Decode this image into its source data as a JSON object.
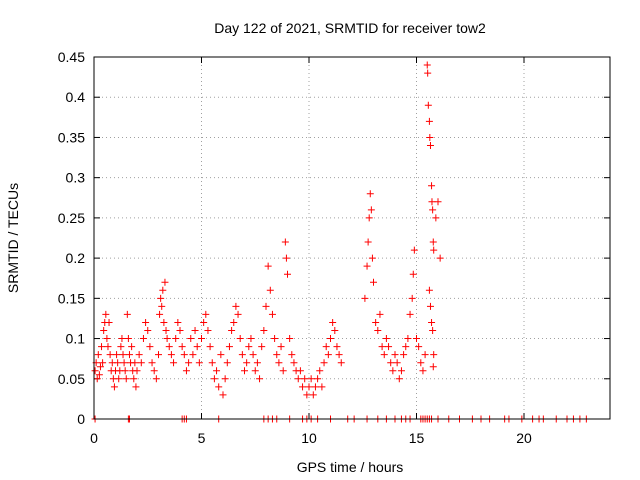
{
  "chart_data": {
    "type": "scatter",
    "title": "Day 122 of 2021, SRMTID for receiver tow2",
    "xlabel": "GPS time / hours",
    "ylabel": "SRMTID / TECUs",
    "xlim": [
      0,
      24
    ],
    "ylim": [
      0,
      0.45
    ],
    "xticks": [
      0,
      5,
      10,
      15,
      20
    ],
    "xtick_labels": [
      "0",
      "5",
      "10",
      "15",
      "20"
    ],
    "yticks": [
      0,
      0.05,
      0.1,
      0.15,
      0.2,
      0.25,
      0.3,
      0.35,
      0.4,
      0.45
    ],
    "ytick_labels": [
      "0",
      "0.05",
      "0.1",
      "0.15",
      "0.2",
      "0.25",
      "0.3",
      "0.35",
      "0.4",
      "0.45"
    ],
    "grid": true,
    "legend": "none",
    "marker": "+",
    "series": [
      {
        "name": "SRMTID",
        "color": "#ff0000",
        "points": [
          [
            0.05,
            0.06
          ],
          [
            0.1,
            0.07
          ],
          [
            0.15,
            0.05
          ],
          [
            0.2,
            0.08
          ],
          [
            0.25,
            0.055
          ],
          [
            0.3,
            0.065
          ],
          [
            0.35,
            0.09
          ],
          [
            0.4,
            0.07
          ],
          [
            0.45,
            0.11
          ],
          [
            0.5,
            0.12
          ],
          [
            0.55,
            0.13
          ],
          [
            0.6,
            0.1
          ],
          [
            0.65,
            0.09
          ],
          [
            0.7,
            0.12
          ],
          [
            0.75,
            0.08
          ],
          [
            0.8,
            0.06
          ],
          [
            0.85,
            0.07
          ],
          [
            0.9,
            0.05
          ],
          [
            0.95,
            0.04
          ],
          [
            1.0,
            0.06
          ],
          [
            1.05,
            0.08
          ],
          [
            1.1,
            0.07
          ],
          [
            1.15,
            0.05
          ],
          [
            1.2,
            0.06
          ],
          [
            1.25,
            0.09
          ],
          [
            1.3,
            0.1
          ],
          [
            1.35,
            0.08
          ],
          [
            1.4,
            0.07
          ],
          [
            1.45,
            0.06
          ],
          [
            1.5,
            0.05
          ],
          [
            1.55,
            0.13
          ],
          [
            1.6,
            0.1
          ],
          [
            1.65,
            0.08
          ],
          [
            1.7,
            0.07
          ],
          [
            1.75,
            0.09
          ],
          [
            1.8,
            0.06
          ],
          [
            1.85,
            0.05
          ],
          [
            1.9,
            0.07
          ],
          [
            1.95,
            0.04
          ],
          [
            2.0,
            0.06
          ],
          [
            2.1,
            0.08
          ],
          [
            2.2,
            0.07
          ],
          [
            2.3,
            0.1
          ],
          [
            2.4,
            0.12
          ],
          [
            2.5,
            0.11
          ],
          [
            2.6,
            0.09
          ],
          [
            2.7,
            0.07
          ],
          [
            2.8,
            0.06
          ],
          [
            2.9,
            0.05
          ],
          [
            3.0,
            0.08
          ],
          [
            3.05,
            0.13
          ],
          [
            3.1,
            0.15
          ],
          [
            3.15,
            0.14
          ],
          [
            3.2,
            0.16
          ],
          [
            3.25,
            0.12
          ],
          [
            3.3,
            0.17
          ],
          [
            3.35,
            0.11
          ],
          [
            3.4,
            0.1
          ],
          [
            3.5,
            0.09
          ],
          [
            3.6,
            0.08
          ],
          [
            3.7,
            0.07
          ],
          [
            3.8,
            0.1
          ],
          [
            3.9,
            0.12
          ],
          [
            4.0,
            0.11
          ],
          [
            4.1,
            0.09
          ],
          [
            4.2,
            0.08
          ],
          [
            4.3,
            0.06
          ],
          [
            4.4,
            0.07
          ],
          [
            4.5,
            0.1
          ],
          [
            4.6,
            0.08
          ],
          [
            4.7,
            0.11
          ],
          [
            4.8,
            0.09
          ],
          [
            4.9,
            0.07
          ],
          [
            5.0,
            0.1
          ],
          [
            5.1,
            0.12
          ],
          [
            5.2,
            0.13
          ],
          [
            5.3,
            0.11
          ],
          [
            5.4,
            0.09
          ],
          [
            5.5,
            0.07
          ],
          [
            5.6,
            0.05
          ],
          [
            5.7,
            0.06
          ],
          [
            5.8,
            0.04
          ],
          [
            5.9,
            0.08
          ],
          [
            6.0,
            0.03
          ],
          [
            6.1,
            0.05
          ],
          [
            6.2,
            0.07
          ],
          [
            6.3,
            0.09
          ],
          [
            6.4,
            0.11
          ],
          [
            6.5,
            0.12
          ],
          [
            6.6,
            0.14
          ],
          [
            6.7,
            0.13
          ],
          [
            6.8,
            0.1
          ],
          [
            6.9,
            0.08
          ],
          [
            7.0,
            0.06
          ],
          [
            7.1,
            0.07
          ],
          [
            7.2,
            0.09
          ],
          [
            7.3,
            0.1
          ],
          [
            7.4,
            0.08
          ],
          [
            7.5,
            0.06
          ],
          [
            7.6,
            0.07
          ],
          [
            7.7,
            0.05
          ],
          [
            7.8,
            0.09
          ],
          [
            7.9,
            0.11
          ],
          [
            8.0,
            0.14
          ],
          [
            8.1,
            0.19
          ],
          [
            8.2,
            0.16
          ],
          [
            8.3,
            0.13
          ],
          [
            8.4,
            0.1
          ],
          [
            8.5,
            0.08
          ],
          [
            8.6,
            0.07
          ],
          [
            8.7,
            0.09
          ],
          [
            8.8,
            0.06
          ],
          [
            8.9,
            0.22
          ],
          [
            8.95,
            0.2
          ],
          [
            9.0,
            0.18
          ],
          [
            9.1,
            0.1
          ],
          [
            9.2,
            0.08
          ],
          [
            9.3,
            0.07
          ],
          [
            9.4,
            0.06
          ],
          [
            9.5,
            0.05
          ],
          [
            9.6,
            0.06
          ],
          [
            9.7,
            0.04
          ],
          [
            9.8,
            0.05
          ],
          [
            9.9,
            0.03
          ],
          [
            10.0,
            0.04
          ],
          [
            10.1,
            0.05
          ],
          [
            10.2,
            0.03
          ],
          [
            10.3,
            0.04
          ],
          [
            10.4,
            0.05
          ],
          [
            10.5,
            0.06
          ],
          [
            10.6,
            0.04
          ],
          [
            10.7,
            0.07
          ],
          [
            10.8,
            0.09
          ],
          [
            10.9,
            0.08
          ],
          [
            11.0,
            0.1
          ],
          [
            11.1,
            0.12
          ],
          [
            11.2,
            0.11
          ],
          [
            11.3,
            0.09
          ],
          [
            11.4,
            0.08
          ],
          [
            11.5,
            0.07
          ],
          [
            12.6,
            0.15
          ],
          [
            12.7,
            0.19
          ],
          [
            12.75,
            0.22
          ],
          [
            12.8,
            0.25
          ],
          [
            12.85,
            0.28
          ],
          [
            12.9,
            0.26
          ],
          [
            12.95,
            0.2
          ],
          [
            13.0,
            0.17
          ],
          [
            13.1,
            0.12
          ],
          [
            13.2,
            0.11
          ],
          [
            13.3,
            0.13
          ],
          [
            13.4,
            0.09
          ],
          [
            13.5,
            0.08
          ],
          [
            13.6,
            0.1
          ],
          [
            13.7,
            0.09
          ],
          [
            13.8,
            0.07
          ],
          [
            13.9,
            0.06
          ],
          [
            14.0,
            0.08
          ],
          [
            14.1,
            0.07
          ],
          [
            14.2,
            0.05
          ],
          [
            14.3,
            0.06
          ],
          [
            14.4,
            0.08
          ],
          [
            14.5,
            0.09
          ],
          [
            14.6,
            0.1
          ],
          [
            14.7,
            0.13
          ],
          [
            14.8,
            0.15
          ],
          [
            14.85,
            0.18
          ],
          [
            14.9,
            0.21
          ],
          [
            15.0,
            0.1
          ],
          [
            15.1,
            0.09
          ],
          [
            15.2,
            0.07
          ],
          [
            15.3,
            0.06
          ],
          [
            15.4,
            0.08
          ],
          [
            15.5,
            0.44
          ],
          [
            15.52,
            0.43
          ],
          [
            15.55,
            0.39
          ],
          [
            15.6,
            0.37
          ],
          [
            15.62,
            0.35
          ],
          [
            15.65,
            0.34
          ],
          [
            15.7,
            0.29
          ],
          [
            15.72,
            0.27
          ],
          [
            15.75,
            0.26
          ],
          [
            15.78,
            0.22
          ],
          [
            15.8,
            0.21
          ],
          [
            15.6,
            0.16
          ],
          [
            15.65,
            0.14
          ],
          [
            15.7,
            0.12
          ],
          [
            15.75,
            0.11
          ],
          [
            15.8,
            0.08
          ],
          [
            15.78,
            0.065
          ],
          [
            15.9,
            0.25
          ],
          [
            16.0,
            0.27
          ],
          [
            16.1,
            0.2
          ]
        ]
      },
      {
        "name": "zero-level markers",
        "color": "#ff0000",
        "points": [
          [
            0.05,
            0
          ],
          [
            1.6,
            0
          ],
          [
            1.65,
            0
          ],
          [
            4.1,
            0
          ],
          [
            4.2,
            0
          ],
          [
            4.3,
            0
          ],
          [
            5.8,
            0
          ],
          [
            7.9,
            0
          ],
          [
            8.1,
            0
          ],
          [
            8.3,
            0
          ],
          [
            8.5,
            0
          ],
          [
            9.1,
            0
          ],
          [
            9.7,
            0
          ],
          [
            9.9,
            0
          ],
          [
            10.1,
            0
          ],
          [
            10.4,
            0
          ],
          [
            11.0,
            0
          ],
          [
            11.8,
            0
          ],
          [
            12.1,
            0
          ],
          [
            12.7,
            0
          ],
          [
            13.2,
            0
          ],
          [
            13.6,
            0
          ],
          [
            14.0,
            0
          ],
          [
            14.3,
            0
          ],
          [
            14.5,
            0
          ],
          [
            14.7,
            0
          ],
          [
            15.2,
            0
          ],
          [
            15.3,
            0
          ],
          [
            15.4,
            0
          ],
          [
            15.5,
            0
          ],
          [
            15.6,
            0
          ],
          [
            15.7,
            0
          ],
          [
            16.0,
            0
          ],
          [
            16.5,
            0
          ],
          [
            17.0,
            0
          ],
          [
            17.6,
            0
          ],
          [
            18.0,
            0
          ],
          [
            18.4,
            0
          ],
          [
            19.1,
            0
          ],
          [
            19.3,
            0
          ],
          [
            19.9,
            0
          ],
          [
            20.4,
            0
          ],
          [
            20.7,
            0
          ],
          [
            20.9,
            0
          ],
          [
            21.5,
            0
          ],
          [
            22.0,
            0
          ],
          [
            22.3,
            0
          ],
          [
            22.6,
            0
          ],
          [
            22.9,
            0
          ]
        ]
      }
    ]
  }
}
